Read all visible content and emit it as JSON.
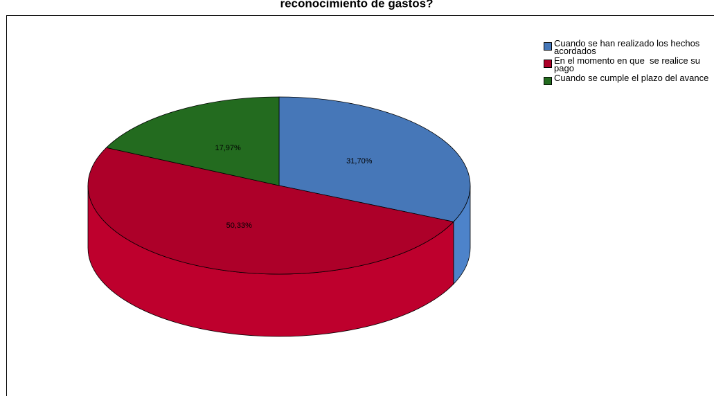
{
  "chart_data": {
    "type": "pie",
    "title": "reconocimiento de gastos?",
    "categories": [
      "Cuando se han realizado los hechos acordados",
      "En el momento en que  se realice su pago",
      "Cuando se cumple el plazo del avance"
    ],
    "values": [
      31.7,
      50.33,
      17.97
    ],
    "value_labels": [
      "31,70%",
      "50,33%",
      "17,97%"
    ],
    "colors": [
      "#4677b8",
      "#ad0029",
      "#236b1f"
    ],
    "legend": "top-right"
  }
}
